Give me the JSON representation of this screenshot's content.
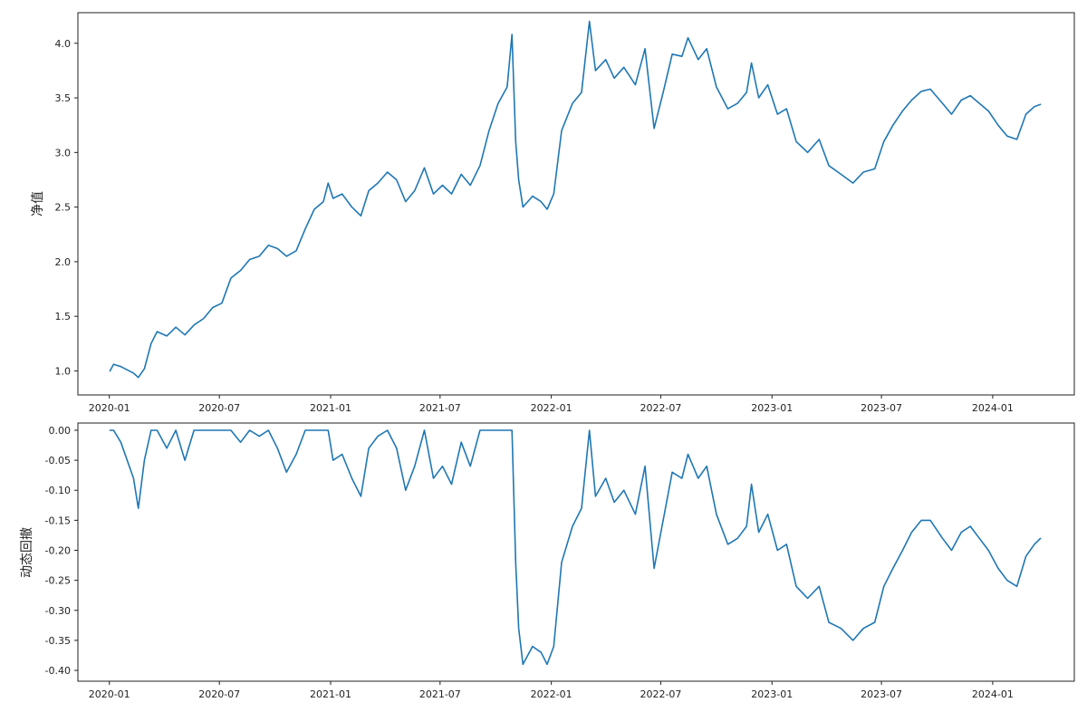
{
  "colors": {
    "series": "#1f77b4",
    "axis": "#222222",
    "background": "#ffffff"
  },
  "chart_data": [
    {
      "type": "line",
      "title": "",
      "xlabel": "",
      "ylabel": "净值",
      "grid": false,
      "xlim": [
        "2019-11-10",
        "2024-05-15"
      ],
      "ylim": [
        0.78,
        4.28
      ],
      "yticks": [
        "1.0",
        "1.5",
        "2.0",
        "2.5",
        "3.0",
        "3.5",
        "4.0"
      ],
      "xticks": [
        "2020-01",
        "2020-07",
        "2021-01",
        "2021-07",
        "2022-01",
        "2022-07",
        "2023-01",
        "2023-07",
        "2024-01"
      ],
      "series": [
        {
          "name": "",
          "points": [
            [
              "2020-01-02",
              1.0
            ],
            [
              "2020-01-08",
              1.06
            ],
            [
              "2020-01-20",
              1.04
            ],
            [
              "2020-02-10",
              0.98
            ],
            [
              "2020-02-18",
              0.94
            ],
            [
              "2020-02-28",
              1.02
            ],
            [
              "2020-03-10",
              1.25
            ],
            [
              "2020-03-20",
              1.36
            ],
            [
              "2020-04-05",
              1.32
            ],
            [
              "2020-04-20",
              1.4
            ],
            [
              "2020-05-05",
              1.33
            ],
            [
              "2020-05-20",
              1.42
            ],
            [
              "2020-06-05",
              1.48
            ],
            [
              "2020-06-20",
              1.58
            ],
            [
              "2020-07-05",
              1.62
            ],
            [
              "2020-07-20",
              1.85
            ],
            [
              "2020-08-05",
              1.92
            ],
            [
              "2020-08-20",
              2.02
            ],
            [
              "2020-09-05",
              2.05
            ],
            [
              "2020-09-20",
              2.15
            ],
            [
              "2020-10-05",
              2.12
            ],
            [
              "2020-10-20",
              2.05
            ],
            [
              "2020-11-05",
              2.1
            ],
            [
              "2020-11-20",
              2.3
            ],
            [
              "2020-12-05",
              2.48
            ],
            [
              "2020-12-20",
              2.55
            ],
            [
              "2020-12-28",
              2.72
            ],
            [
              "2021-01-05",
              2.58
            ],
            [
              "2021-01-20",
              2.62
            ],
            [
              "2021-02-05",
              2.5
            ],
            [
              "2021-02-20",
              2.42
            ],
            [
              "2021-03-05",
              2.65
            ],
            [
              "2021-03-20",
              2.72
            ],
            [
              "2021-04-05",
              2.82
            ],
            [
              "2021-04-20",
              2.75
            ],
            [
              "2021-05-05",
              2.55
            ],
            [
              "2021-05-20",
              2.65
            ],
            [
              "2021-06-05",
              2.86
            ],
            [
              "2021-06-20",
              2.62
            ],
            [
              "2021-07-05",
              2.7
            ],
            [
              "2021-07-20",
              2.62
            ],
            [
              "2021-08-05",
              2.8
            ],
            [
              "2021-08-20",
              2.7
            ],
            [
              "2021-09-05",
              2.88
            ],
            [
              "2021-09-20",
              3.2
            ],
            [
              "2021-10-05",
              3.45
            ],
            [
              "2021-10-20",
              3.6
            ],
            [
              "2021-10-28",
              4.08
            ],
            [
              "2021-11-03",
              3.1
            ],
            [
              "2021-11-08",
              2.75
            ],
            [
              "2021-11-15",
              2.5
            ],
            [
              "2021-12-01",
              2.6
            ],
            [
              "2021-12-15",
              2.55
            ],
            [
              "2021-12-25",
              2.48
            ],
            [
              "2022-01-05",
              2.62
            ],
            [
              "2022-01-18",
              3.2
            ],
            [
              "2022-02-05",
              3.45
            ],
            [
              "2022-02-20",
              3.55
            ],
            [
              "2022-03-05",
              4.2
            ],
            [
              "2022-03-15",
              3.75
            ],
            [
              "2022-04-01",
              3.85
            ],
            [
              "2022-04-15",
              3.68
            ],
            [
              "2022-05-01",
              3.78
            ],
            [
              "2022-05-20",
              3.62
            ],
            [
              "2022-06-05",
              3.95
            ],
            [
              "2022-06-20",
              3.22
            ],
            [
              "2022-07-05",
              3.55
            ],
            [
              "2022-07-20",
              3.9
            ],
            [
              "2022-08-05",
              3.88
            ],
            [
              "2022-08-15",
              4.05
            ],
            [
              "2022-09-01",
              3.85
            ],
            [
              "2022-09-15",
              3.95
            ],
            [
              "2022-10-01",
              3.6
            ],
            [
              "2022-10-20",
              3.4
            ],
            [
              "2022-11-05",
              3.45
            ],
            [
              "2022-11-20",
              3.55
            ],
            [
              "2022-11-28",
              3.82
            ],
            [
              "2022-12-10",
              3.5
            ],
            [
              "2022-12-25",
              3.62
            ],
            [
              "2023-01-10",
              3.35
            ],
            [
              "2023-01-25",
              3.4
            ],
            [
              "2023-02-10",
              3.1
            ],
            [
              "2023-03-01",
              3.0
            ],
            [
              "2023-03-20",
              3.12
            ],
            [
              "2023-04-05",
              2.88
            ],
            [
              "2023-04-25",
              2.8
            ],
            [
              "2023-05-15",
              2.72
            ],
            [
              "2023-06-01",
              2.82
            ],
            [
              "2023-06-20",
              2.85
            ],
            [
              "2023-07-05",
              3.1
            ],
            [
              "2023-07-20",
              3.25
            ],
            [
              "2023-08-05",
              3.38
            ],
            [
              "2023-08-20",
              3.48
            ],
            [
              "2023-09-05",
              3.56
            ],
            [
              "2023-09-20",
              3.58
            ],
            [
              "2023-10-10",
              3.45
            ],
            [
              "2023-10-25",
              3.35
            ],
            [
              "2023-11-10",
              3.48
            ],
            [
              "2023-11-25",
              3.52
            ],
            [
              "2023-12-10",
              3.45
            ],
            [
              "2023-12-25",
              3.38
            ],
            [
              "2024-01-10",
              3.25
            ],
            [
              "2024-01-25",
              3.15
            ],
            [
              "2024-02-10",
              3.12
            ],
            [
              "2024-02-25",
              3.35
            ],
            [
              "2024-03-10",
              3.42
            ],
            [
              "2024-03-20",
              3.44
            ]
          ]
        }
      ]
    },
    {
      "type": "line",
      "title": "",
      "xlabel": "",
      "ylabel": "动态回撤",
      "grid": false,
      "xlim": [
        "2019-11-10",
        "2024-05-15"
      ],
      "ylim": [
        -0.418,
        0.012
      ],
      "yticks": [
        "0.00",
        "-0.05",
        "-0.10",
        "-0.15",
        "-0.20",
        "-0.25",
        "-0.30",
        "-0.35",
        "-0.40"
      ],
      "xticks": [
        "2020-01",
        "2020-07",
        "2021-01",
        "2021-07",
        "2022-01",
        "2022-07",
        "2023-01",
        "2023-07",
        "2024-01"
      ],
      "series": [
        {
          "name": "",
          "points": [
            [
              "2020-01-02",
              0.0
            ],
            [
              "2020-01-08",
              0.0
            ],
            [
              "2020-01-20",
              -0.02
            ],
            [
              "2020-02-10",
              -0.08
            ],
            [
              "2020-02-18",
              -0.13
            ],
            [
              "2020-02-28",
              -0.05
            ],
            [
              "2020-03-10",
              0.0
            ],
            [
              "2020-03-20",
              0.0
            ],
            [
              "2020-04-05",
              -0.03
            ],
            [
              "2020-04-20",
              0.0
            ],
            [
              "2020-05-05",
              -0.05
            ],
            [
              "2020-05-20",
              0.0
            ],
            [
              "2020-06-05",
              0.0
            ],
            [
              "2020-06-20",
              0.0
            ],
            [
              "2020-07-05",
              0.0
            ],
            [
              "2020-07-20",
              0.0
            ],
            [
              "2020-08-05",
              -0.02
            ],
            [
              "2020-08-20",
              0.0
            ],
            [
              "2020-09-05",
              -0.01
            ],
            [
              "2020-09-20",
              0.0
            ],
            [
              "2020-10-05",
              -0.03
            ],
            [
              "2020-10-20",
              -0.07
            ],
            [
              "2020-11-05",
              -0.04
            ],
            [
              "2020-11-20",
              0.0
            ],
            [
              "2020-12-05",
              0.0
            ],
            [
              "2020-12-20",
              0.0
            ],
            [
              "2020-12-28",
              0.0
            ],
            [
              "2021-01-05",
              -0.05
            ],
            [
              "2021-01-20",
              -0.04
            ],
            [
              "2021-02-05",
              -0.08
            ],
            [
              "2021-02-20",
              -0.11
            ],
            [
              "2021-03-05",
              -0.03
            ],
            [
              "2021-03-20",
              -0.01
            ],
            [
              "2021-04-05",
              0.0
            ],
            [
              "2021-04-20",
              -0.03
            ],
            [
              "2021-05-05",
              -0.1
            ],
            [
              "2021-05-20",
              -0.06
            ],
            [
              "2021-06-05",
              0.0
            ],
            [
              "2021-06-20",
              -0.08
            ],
            [
              "2021-07-05",
              -0.06
            ],
            [
              "2021-07-20",
              -0.09
            ],
            [
              "2021-08-05",
              -0.02
            ],
            [
              "2021-08-20",
              -0.06
            ],
            [
              "2021-09-05",
              0.0
            ],
            [
              "2021-09-20",
              0.0
            ],
            [
              "2021-10-05",
              0.0
            ],
            [
              "2021-10-20",
              0.0
            ],
            [
              "2021-10-28",
              0.0
            ],
            [
              "2021-11-03",
              -0.22
            ],
            [
              "2021-11-08",
              -0.33
            ],
            [
              "2021-11-15",
              -0.39
            ],
            [
              "2021-12-01",
              -0.36
            ],
            [
              "2021-12-15",
              -0.37
            ],
            [
              "2021-12-25",
              -0.39
            ],
            [
              "2022-01-05",
              -0.36
            ],
            [
              "2022-01-18",
              -0.22
            ],
            [
              "2022-02-05",
              -0.16
            ],
            [
              "2022-02-20",
              -0.13
            ],
            [
              "2022-03-05",
              0.0
            ],
            [
              "2022-03-15",
              -0.11
            ],
            [
              "2022-04-01",
              -0.08
            ],
            [
              "2022-04-15",
              -0.12
            ],
            [
              "2022-05-01",
              -0.1
            ],
            [
              "2022-05-20",
              -0.14
            ],
            [
              "2022-06-05",
              -0.06
            ],
            [
              "2022-06-20",
              -0.23
            ],
            [
              "2022-07-05",
              -0.15
            ],
            [
              "2022-07-20",
              -0.07
            ],
            [
              "2022-08-05",
              -0.08
            ],
            [
              "2022-08-15",
              -0.04
            ],
            [
              "2022-09-01",
              -0.08
            ],
            [
              "2022-09-15",
              -0.06
            ],
            [
              "2022-10-01",
              -0.14
            ],
            [
              "2022-10-20",
              -0.19
            ],
            [
              "2022-11-05",
              -0.18
            ],
            [
              "2022-11-20",
              -0.16
            ],
            [
              "2022-11-28",
              -0.09
            ],
            [
              "2022-12-10",
              -0.17
            ],
            [
              "2022-12-25",
              -0.14
            ],
            [
              "2023-01-10",
              -0.2
            ],
            [
              "2023-01-25",
              -0.19
            ],
            [
              "2023-02-10",
              -0.26
            ],
            [
              "2023-03-01",
              -0.28
            ],
            [
              "2023-03-20",
              -0.26
            ],
            [
              "2023-04-05",
              -0.32
            ],
            [
              "2023-04-25",
              -0.33
            ],
            [
              "2023-05-15",
              -0.35
            ],
            [
              "2023-06-01",
              -0.33
            ],
            [
              "2023-06-20",
              -0.32
            ],
            [
              "2023-07-05",
              -0.26
            ],
            [
              "2023-07-20",
              -0.23
            ],
            [
              "2023-08-05",
              -0.2
            ],
            [
              "2023-08-20",
              -0.17
            ],
            [
              "2023-09-05",
              -0.15
            ],
            [
              "2023-09-20",
              -0.15
            ],
            [
              "2023-10-10",
              -0.18
            ],
            [
              "2023-10-25",
              -0.2
            ],
            [
              "2023-11-10",
              -0.17
            ],
            [
              "2023-11-25",
              -0.16
            ],
            [
              "2023-12-10",
              -0.18
            ],
            [
              "2023-12-25",
              -0.2
            ],
            [
              "2024-01-10",
              -0.23
            ],
            [
              "2024-01-25",
              -0.25
            ],
            [
              "2024-02-10",
              -0.26
            ],
            [
              "2024-02-25",
              -0.21
            ],
            [
              "2024-03-10",
              -0.19
            ],
            [
              "2024-03-20",
              -0.18
            ]
          ]
        }
      ]
    }
  ]
}
